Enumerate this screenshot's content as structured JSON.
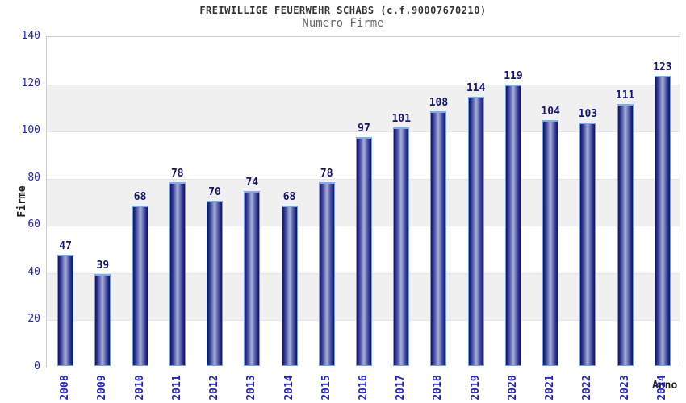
{
  "header": {
    "title": "FREIWILLIGE FEUERWEHR SCHABS (c.f.90007670210)",
    "subtitle": "Numero Firme"
  },
  "chart_data": {
    "type": "bar",
    "title": "FREIWILLIGE FEUERWEHR SCHABS (c.f.90007670210)",
    "subtitle": "Numero Firme",
    "xlabel": "Anno",
    "ylabel": "Firme",
    "categories": [
      "2008",
      "2009",
      "2010",
      "2011",
      "2012",
      "2013",
      "2014",
      "2015",
      "2016",
      "2017",
      "2018",
      "2019",
      "2020",
      "2021",
      "2022",
      "2023",
      "2024"
    ],
    "values": [
      47,
      39,
      68,
      78,
      70,
      74,
      68,
      78,
      97,
      101,
      108,
      114,
      119,
      104,
      103,
      111,
      123
    ],
    "ylim": [
      0,
      140
    ],
    "yticks": [
      0,
      20,
      40,
      60,
      80,
      100,
      120,
      140
    ],
    "grid": "alternating-horizontal-bands",
    "legend": "none",
    "colors": {
      "tick_label": "#2222cc",
      "value_label": "#15156e",
      "axis_title": "#222222",
      "bar_edge": "#12125e",
      "bar_mid": "#a2aad6",
      "bar_outline": "#6fa0e2",
      "band_gray": "#f0f0f0",
      "band_white": "#ffffff",
      "plot_border": "#cccccc",
      "title_color": "#333333",
      "subtitle_color": "#666666"
    }
  }
}
